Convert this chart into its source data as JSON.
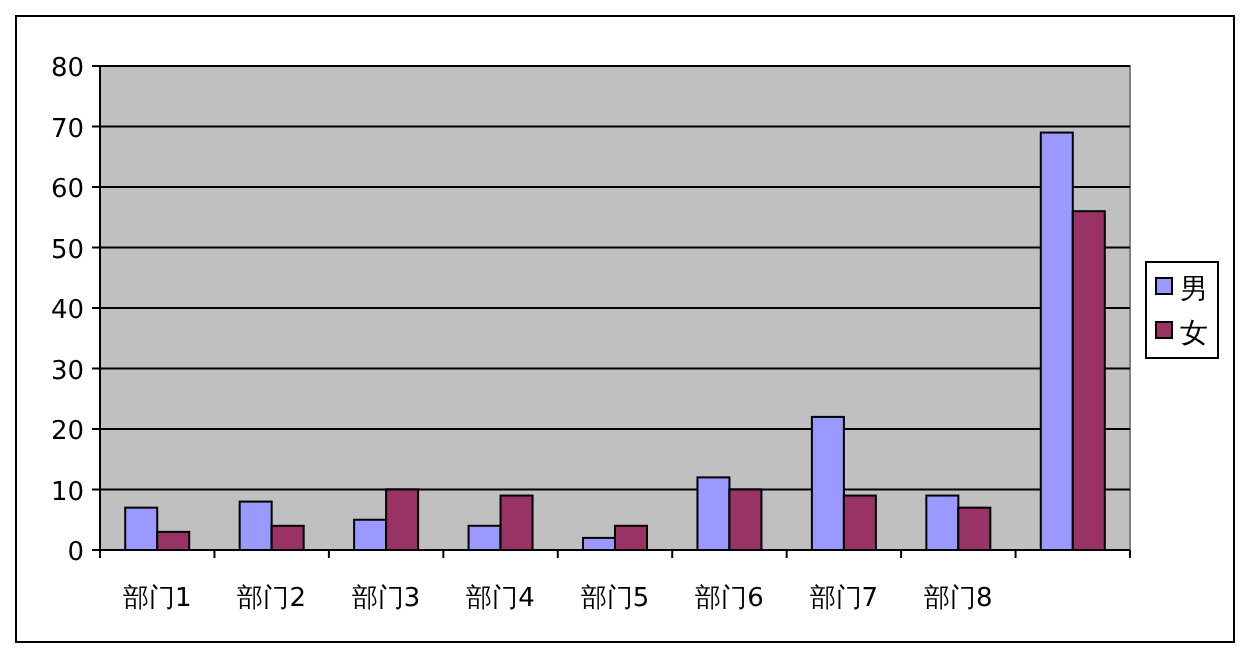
{
  "chart_data": {
    "type": "bar",
    "categories": [
      "部门1",
      "部门2",
      "部门3",
      "部门4",
      "部门5",
      "部门6",
      "部门7",
      "部门8",
      null
    ],
    "series": [
      {
        "name": "男",
        "color": "#9999ff",
        "values": [
          7,
          8,
          5,
          4,
          2,
          12,
          22,
          9,
          69
        ]
      },
      {
        "name": "女",
        "color": "#993366",
        "values": [
          3,
          4,
          10,
          9,
          4,
          10,
          9,
          7,
          56
        ]
      }
    ],
    "ylim": [
      0,
      80
    ],
    "yticks": [
      0,
      10,
      20,
      30,
      40,
      50,
      60,
      70,
      80
    ],
    "grid": "y",
    "legend": "right"
  }
}
